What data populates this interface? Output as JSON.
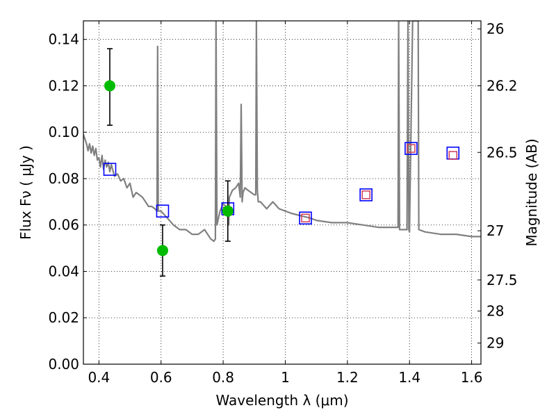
{
  "chart_data": {
    "type": "scatter",
    "xlabel": "Wavelength  λ (μm)",
    "ylabel": "Flux  Fν  ( μJy )",
    "y2label": "Magnitude (AB)",
    "xlim": [
      0.35,
      1.63
    ],
    "ylim": [
      0.0,
      0.148
    ],
    "grid": true,
    "x_ticks": [
      0.4,
      0.6,
      0.8,
      1.0,
      1.2,
      1.4,
      1.6
    ],
    "x_tick_labels": [
      "0.4",
      "0.6",
      "0.8",
      "1",
      "1.2",
      "1.4",
      "1.6"
    ],
    "y_ticks": [
      0.0,
      0.02,
      0.04,
      0.06,
      0.08,
      0.1,
      0.12,
      0.14
    ],
    "y_tick_labels": [
      "0.00",
      "0.02",
      "0.04",
      "0.06",
      "0.08",
      "0.10",
      "0.12",
      "0.14"
    ],
    "y2_ticks": [
      {
        "flux": 0.1445,
        "label": "26"
      },
      {
        "flux": 0.12,
        "label": "26.2"
      },
      {
        "flux": 0.0913,
        "label": "26.5"
      },
      {
        "flux": 0.0575,
        "label": "27"
      },
      {
        "flux": 0.0363,
        "label": "27.5"
      },
      {
        "flux": 0.0229,
        "label": "28"
      },
      {
        "flux": 0.0091,
        "label": "29"
      }
    ],
    "series": [
      {
        "style": "model-line",
        "color": "#808080",
        "x": [
          0.35,
          0.36,
          0.365,
          0.37,
          0.375,
          0.38,
          0.385,
          0.39,
          0.395,
          0.4,
          0.405,
          0.41,
          0.415,
          0.42,
          0.425,
          0.43,
          0.435,
          0.44,
          0.45,
          0.46,
          0.47,
          0.48,
          0.49,
          0.5,
          0.51,
          0.52,
          0.53,
          0.54,
          0.55,
          0.56,
          0.57,
          0.58,
          0.587,
          0.589,
          0.591,
          0.595,
          0.6,
          0.62,
          0.64,
          0.66,
          0.68,
          0.7,
          0.72,
          0.74,
          0.76,
          0.77,
          0.775,
          0.777,
          0.78,
          0.79,
          0.8,
          0.81,
          0.815,
          0.818,
          0.82,
          0.83,
          0.84,
          0.85,
          0.855,
          0.858,
          0.861,
          0.864,
          0.87,
          0.88,
          0.89,
          0.9,
          0.905,
          0.907,
          0.91,
          0.913,
          0.915,
          0.92,
          0.94,
          0.96,
          0.98,
          1.0,
          1.02,
          1.05,
          1.08,
          1.1,
          1.15,
          1.2,
          1.25,
          1.3,
          1.35,
          1.36,
          1.363,
          1.365,
          1.368,
          1.37,
          1.38,
          1.39,
          1.392,
          1.395,
          1.398,
          1.4,
          1.41,
          1.42,
          1.425,
          1.428,
          1.43,
          1.45,
          1.5,
          1.55,
          1.6,
          1.63
        ],
        "y": [
          0.099,
          0.095,
          0.092,
          0.095,
          0.091,
          0.094,
          0.09,
          0.093,
          0.088,
          0.089,
          0.085,
          0.09,
          0.084,
          0.088,
          0.085,
          0.087,
          0.083,
          0.086,
          0.081,
          0.082,
          0.079,
          0.08,
          0.076,
          0.078,
          0.072,
          0.074,
          0.073,
          0.072,
          0.07,
          0.068,
          0.068,
          0.067,
          0.066,
          0.137,
          0.066,
          0.066,
          0.066,
          0.063,
          0.06,
          0.058,
          0.058,
          0.056,
          0.056,
          0.058,
          0.054,
          0.053,
          0.054,
          0.148,
          0.06,
          0.066,
          0.069,
          0.068,
          0.064,
          0.06,
          0.072,
          0.075,
          0.076,
          0.078,
          0.072,
          0.112,
          0.07,
          0.074,
          0.076,
          0.075,
          0.074,
          0.073,
          0.073,
          0.148,
          0.075,
          0.07,
          0.07,
          0.07,
          0.067,
          0.07,
          0.067,
          0.066,
          0.065,
          0.064,
          0.063,
          0.062,
          0.061,
          0.061,
          0.06,
          0.059,
          0.059,
          0.059,
          0.059,
          0.148,
          0.058,
          0.058,
          0.058,
          0.058,
          0.058,
          0.148,
          0.058,
          0.057,
          0.148,
          0.148,
          0.148,
          0.148,
          0.058,
          0.057,
          0.056,
          0.056,
          0.055,
          0.055
        ]
      },
      {
        "style": "hollow-square",
        "color": "#0000ff",
        "x": [
          0.435,
          0.605,
          0.815,
          1.065,
          1.26,
          1.405,
          1.54
        ],
        "y": [
          0.084,
          0.066,
          0.067,
          0.063,
          0.073,
          0.093,
          0.091
        ]
      },
      {
        "style": "small-hollow-square",
        "color": "#d03a5a",
        "x": [
          0.815,
          1.065,
          1.26,
          1.405,
          1.54
        ],
        "y": [
          0.066,
          0.063,
          0.073,
          0.093,
          0.09
        ]
      },
      {
        "style": "filled-circle-errorbar",
        "color": "#00bb00",
        "x": [
          0.435,
          0.605,
          0.815
        ],
        "y": [
          0.12,
          0.049,
          0.066
        ],
        "yerr_low": [
          0.103,
          0.038,
          0.053
        ],
        "yerr_high": [
          0.136,
          0.06,
          0.079
        ]
      }
    ]
  }
}
